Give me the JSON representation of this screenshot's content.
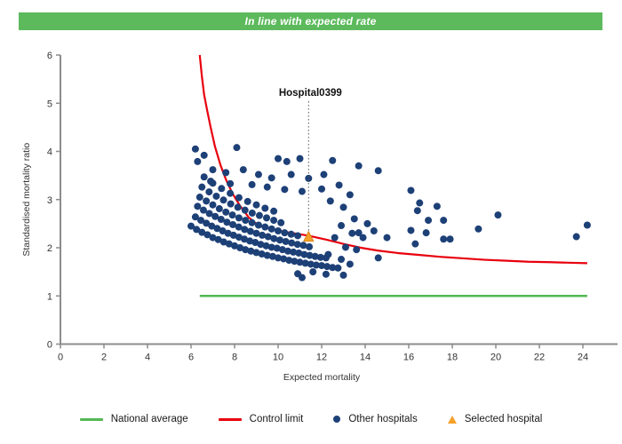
{
  "header": {
    "title": "In line with expected rate",
    "bg_color": "#5CBA5C",
    "text_color": "#ffffff"
  },
  "colors": {
    "national_average": "#53B853",
    "control_limit": "#E8000D",
    "other_hospitals": "#1D4077",
    "selected_hospital": "#F5A028",
    "selected_hospital_border": "#D8891E",
    "axis": "#8C8C8C",
    "tick_text": "#333333"
  },
  "chart_data": {
    "type": "scatter",
    "title": "",
    "xlabel": "Expected mortality",
    "ylabel": "Standardised mortality ratio",
    "xlim": [
      0,
      25.6
    ],
    "ylim": [
      0,
      6
    ],
    "x_ticks": [
      0,
      2,
      4,
      6,
      8,
      10,
      12,
      14,
      16,
      18,
      20,
      22,
      24
    ],
    "y_ticks": [
      0,
      1,
      2,
      3,
      4,
      5,
      6
    ],
    "grid": false,
    "legend_position": "bottom",
    "annotation": {
      "label": "Hospital0399",
      "x": 11.4,
      "y": 2.21
    },
    "national_average": {
      "y": 1.0,
      "x_start": 6.4,
      "x_end": 24.2
    },
    "selected_hospital": {
      "x": 11.4,
      "y": 2.21
    },
    "control_limit_points": [
      [
        6.4,
        6.0
      ],
      [
        6.5,
        5.55
      ],
      [
        6.6,
        5.18
      ],
      [
        6.75,
        4.83
      ],
      [
        6.9,
        4.5
      ],
      [
        7.1,
        4.1
      ],
      [
        7.35,
        3.72
      ],
      [
        7.6,
        3.42
      ],
      [
        7.9,
        3.13
      ],
      [
        8.25,
        2.87
      ],
      [
        8.65,
        2.63
      ],
      [
        9.1,
        2.46
      ],
      [
        9.6,
        2.4
      ],
      [
        10.3,
        2.33
      ],
      [
        11.0,
        2.28
      ],
      [
        11.4,
        2.25
      ],
      [
        12.2,
        2.17
      ],
      [
        13.0,
        2.08
      ],
      [
        13.8,
        2.0
      ],
      [
        14.6,
        1.94
      ],
      [
        15.5,
        1.89
      ],
      [
        16.5,
        1.85
      ],
      [
        17.5,
        1.81
      ],
      [
        18.5,
        1.78
      ],
      [
        19.5,
        1.75
      ],
      [
        20.5,
        1.73
      ],
      [
        21.5,
        1.71
      ],
      [
        22.5,
        1.7
      ],
      [
        23.3,
        1.69
      ],
      [
        24.2,
        1.68
      ]
    ],
    "other_hospitals_points": [
      [
        6.0,
        2.45
      ],
      [
        6.25,
        2.38
      ],
      [
        6.5,
        2.32
      ],
      [
        6.75,
        2.27
      ],
      [
        7.0,
        2.21
      ],
      [
        7.25,
        2.17
      ],
      [
        7.5,
        2.12
      ],
      [
        7.75,
        2.08
      ],
      [
        8.0,
        2.04
      ],
      [
        8.25,
        2.0
      ],
      [
        8.5,
        1.96
      ],
      [
        8.75,
        1.93
      ],
      [
        9.0,
        1.9
      ],
      [
        9.25,
        1.87
      ],
      [
        9.5,
        1.84
      ],
      [
        9.75,
        1.82
      ],
      [
        10.0,
        1.79
      ],
      [
        10.25,
        1.77
      ],
      [
        10.5,
        1.74
      ],
      [
        10.75,
        1.72
      ],
      [
        11.0,
        1.7
      ],
      [
        11.25,
        1.68
      ],
      [
        11.5,
        1.66
      ],
      [
        11.75,
        1.64
      ],
      [
        12.0,
        1.63
      ],
      [
        12.25,
        1.61
      ],
      [
        12.5,
        1.59
      ],
      [
        12.75,
        1.58
      ],
      [
        6.2,
        2.64
      ],
      [
        6.45,
        2.57
      ],
      [
        6.7,
        2.51
      ],
      [
        6.95,
        2.45
      ],
      [
        7.2,
        2.4
      ],
      [
        7.45,
        2.35
      ],
      [
        7.7,
        2.3
      ],
      [
        7.95,
        2.26
      ],
      [
        8.2,
        2.22
      ],
      [
        8.45,
        2.18
      ],
      [
        8.7,
        2.14
      ],
      [
        8.95,
        2.11
      ],
      [
        9.2,
        2.07
      ],
      [
        9.45,
        2.04
      ],
      [
        9.7,
        2.01
      ],
      [
        9.95,
        1.99
      ],
      [
        10.2,
        1.96
      ],
      [
        10.45,
        1.93
      ],
      [
        10.7,
        1.91
      ],
      [
        10.95,
        1.89
      ],
      [
        11.2,
        1.86
      ],
      [
        11.45,
        1.84
      ],
      [
        11.7,
        1.82
      ],
      [
        11.95,
        1.8
      ],
      [
        12.2,
        1.79
      ],
      [
        6.3,
        2.86
      ],
      [
        6.57,
        2.78
      ],
      [
        6.84,
        2.71
      ],
      [
        7.11,
        2.65
      ],
      [
        7.38,
        2.59
      ],
      [
        7.65,
        2.53
      ],
      [
        7.92,
        2.48
      ],
      [
        8.19,
        2.43
      ],
      [
        8.46,
        2.38
      ],
      [
        8.73,
        2.34
      ],
      [
        9.0,
        2.3
      ],
      [
        9.27,
        2.26
      ],
      [
        9.54,
        2.23
      ],
      [
        9.81,
        2.19
      ],
      [
        10.08,
        2.16
      ],
      [
        10.35,
        2.13
      ],
      [
        10.62,
        2.1
      ],
      [
        10.89,
        2.07
      ],
      [
        11.16,
        2.05
      ],
      [
        11.43,
        2.02
      ],
      [
        6.4,
        3.05
      ],
      [
        6.7,
        2.97
      ],
      [
        7.0,
        2.89
      ],
      [
        7.3,
        2.81
      ],
      [
        7.6,
        2.74
      ],
      [
        7.9,
        2.68
      ],
      [
        8.2,
        2.62
      ],
      [
        8.5,
        2.57
      ],
      [
        8.8,
        2.52
      ],
      [
        9.1,
        2.47
      ],
      [
        9.4,
        2.43
      ],
      [
        9.7,
        2.39
      ],
      [
        10.0,
        2.35
      ],
      [
        10.3,
        2.31
      ],
      [
        10.6,
        2.28
      ],
      [
        10.9,
        2.25
      ],
      [
        6.5,
        3.26
      ],
      [
        6.83,
        3.16
      ],
      [
        7.16,
        3.07
      ],
      [
        7.49,
        2.99
      ],
      [
        7.82,
        2.91
      ],
      [
        8.15,
        2.84
      ],
      [
        8.48,
        2.78
      ],
      [
        8.81,
        2.72
      ],
      [
        9.14,
        2.67
      ],
      [
        9.47,
        2.62
      ],
      [
        9.8,
        2.57
      ],
      [
        10.13,
        2.52
      ],
      [
        6.6,
        3.47
      ],
      [
        7.0,
        3.34
      ],
      [
        7.4,
        3.23
      ],
      [
        7.8,
        3.13
      ],
      [
        8.2,
        3.04
      ],
      [
        8.6,
        2.96
      ],
      [
        9.0,
        2.89
      ],
      [
        9.4,
        2.82
      ],
      [
        9.8,
        2.76
      ],
      [
        6.2,
        4.05
      ],
      [
        8.1,
        4.08
      ],
      [
        6.6,
        3.92
      ],
      [
        6.3,
        3.79
      ],
      [
        10.0,
        3.85
      ],
      [
        10.4,
        3.79
      ],
      [
        11.0,
        3.85
      ],
      [
        12.5,
        3.81
      ],
      [
        13.7,
        3.7
      ],
      [
        7.0,
        3.62
      ],
      [
        7.6,
        3.56
      ],
      [
        8.4,
        3.62
      ],
      [
        9.1,
        3.52
      ],
      [
        9.7,
        3.45
      ],
      [
        10.6,
        3.52
      ],
      [
        11.4,
        3.44
      ],
      [
        12.1,
        3.52
      ],
      [
        6.9,
        3.38
      ],
      [
        7.8,
        3.33
      ],
      [
        8.8,
        3.31
      ],
      [
        9.5,
        3.26
      ],
      [
        10.3,
        3.21
      ],
      [
        11.1,
        3.17
      ],
      [
        12.0,
        3.22
      ],
      [
        12.8,
        3.3
      ],
      [
        13.3,
        3.1
      ],
      [
        12.4,
        2.97
      ],
      [
        13.0,
        2.84
      ],
      [
        14.6,
        3.6
      ],
      [
        13.7,
        2.31
      ],
      [
        13.5,
        2.6
      ],
      [
        12.9,
        2.46
      ],
      [
        13.4,
        2.3
      ],
      [
        13.9,
        2.21
      ],
      [
        14.1,
        2.5
      ],
      [
        14.4,
        2.35
      ],
      [
        15.0,
        2.21
      ],
      [
        12.6,
        2.21
      ],
      [
        13.1,
        2.01
      ],
      [
        13.6,
        1.96
      ],
      [
        14.6,
        1.79
      ],
      [
        12.3,
        1.86
      ],
      [
        12.9,
        1.76
      ],
      [
        13.3,
        1.66
      ],
      [
        10.9,
        1.46
      ],
      [
        11.6,
        1.5
      ],
      [
        12.2,
        1.45
      ],
      [
        13.0,
        1.43
      ],
      [
        11.1,
        1.38
      ],
      [
        16.1,
        3.19
      ],
      [
        16.5,
        2.93
      ],
      [
        16.4,
        2.77
      ],
      [
        17.3,
        2.86
      ],
      [
        16.9,
        2.57
      ],
      [
        17.6,
        2.57
      ],
      [
        16.1,
        2.36
      ],
      [
        16.8,
        2.31
      ],
      [
        16.3,
        2.08
      ],
      [
        17.6,
        2.18
      ],
      [
        17.9,
        2.18
      ],
      [
        19.2,
        2.39
      ],
      [
        20.1,
        2.68
      ],
      [
        23.7,
        2.23
      ],
      [
        24.2,
        2.47
      ]
    ]
  },
  "legend": {
    "items": [
      {
        "label": "National average",
        "type": "line",
        "color": "#53B853"
      },
      {
        "label": "Control limit",
        "type": "line",
        "color": "#E8000D"
      },
      {
        "label": "Other hospitals",
        "type": "dot",
        "color": "#1D4077"
      },
      {
        "label": "Selected hospital",
        "type": "triangle",
        "color": "#F5A028"
      }
    ]
  }
}
